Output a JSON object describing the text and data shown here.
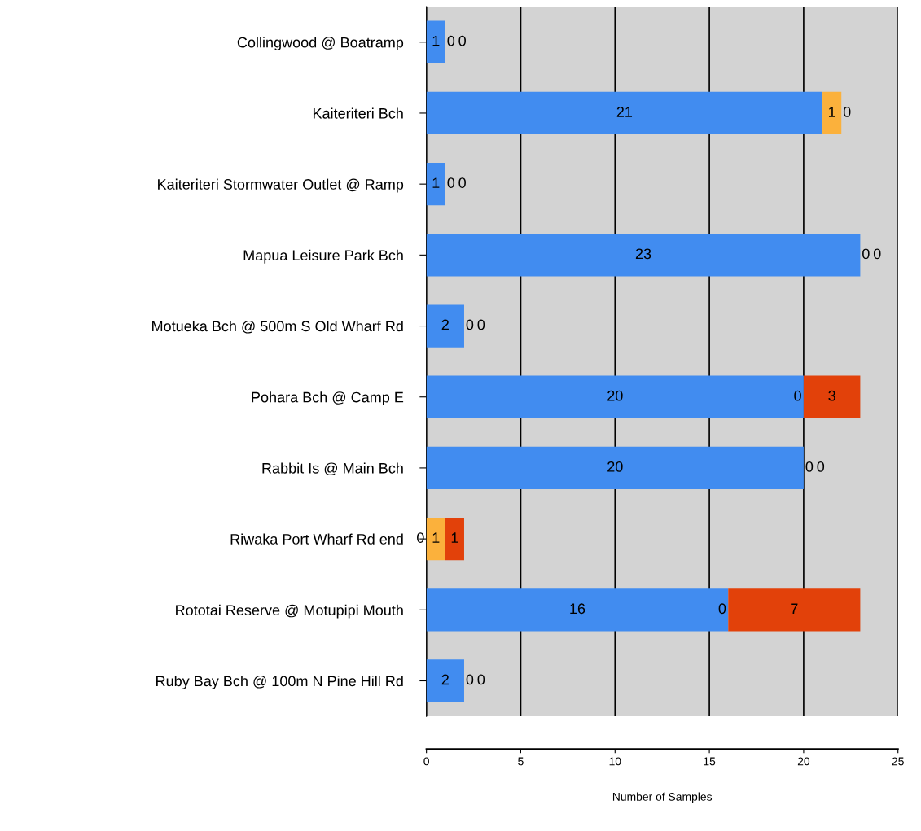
{
  "chart_data": {
    "type": "bar",
    "orientation": "horizontal",
    "stacked": true,
    "data_labels": true,
    "grid": "x",
    "xlabel": "Number of Samples",
    "xlim": [
      0,
      25
    ],
    "xticks": [
      0,
      5,
      10,
      15,
      20,
      25
    ],
    "categories": [
      "Collingwood @ Boatramp",
      "Kaiteriteri Bch",
      "Kaiteriteri Stormwater Outlet @ Ramp",
      "Mapua Leisure Park Bch",
      "Motueka Bch @ 500m S Old Wharf Rd",
      "Pohara Bch @ Camp E",
      "Rabbit Is @ Main Bch",
      "Riwaka Port Wharf Rd end",
      "Rototai Reserve @ Motupipi Mouth",
      "Ruby Bay Bch @ 100m N Pine Hill Rd"
    ],
    "series": [
      {
        "color": "#418cf0",
        "values": [
          1,
          21,
          1,
          23,
          2,
          20,
          20,
          0,
          16,
          2
        ]
      },
      {
        "color": "#fbb13c",
        "values": [
          0,
          1,
          0,
          0,
          0,
          0,
          0,
          1,
          0,
          0
        ],
        "value_labels": [
          "0",
          "1",
          "0",
          "0",
          "0",
          null,
          "0",
          "1",
          null,
          "0"
        ]
      },
      {
        "color": "#e2410a",
        "values": [
          0,
          0,
          0,
          0,
          0,
          3,
          0,
          1,
          7,
          0
        ]
      }
    ],
    "annotations": [
      {
        "text": "0",
        "x": 20,
        "y": "Pohara Bch @ Camp E"
      },
      {
        "text": "0",
        "x": 16,
        "y": "Rototai Reserve @ Motupipi Mouth"
      }
    ]
  }
}
